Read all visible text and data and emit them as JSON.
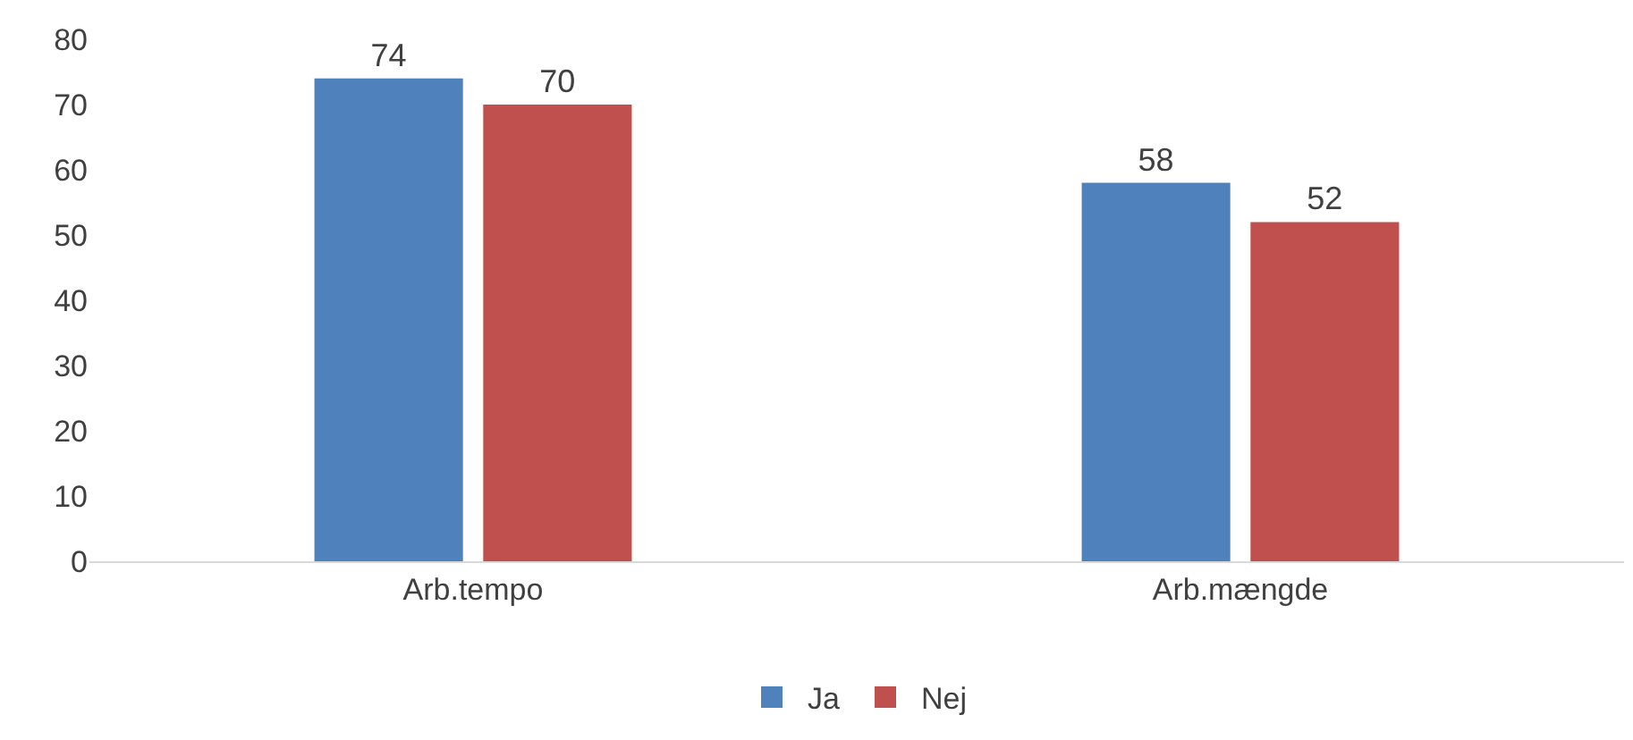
{
  "chart_data": {
    "type": "bar",
    "categories": [
      "Arb.tempo",
      "Arb.mængde"
    ],
    "series": [
      {
        "name": "Ja",
        "color": "#4f81bd",
        "values": [
          74,
          58
        ]
      },
      {
        "name": "Nej",
        "color": "#c0504d",
        "values": [
          70,
          52
        ]
      }
    ],
    "ylim": [
      0,
      80
    ],
    "yticks": [
      0,
      10,
      20,
      30,
      40,
      50,
      60,
      70,
      80
    ],
    "data_labels": true,
    "grid": false,
    "legend": "bottom"
  }
}
